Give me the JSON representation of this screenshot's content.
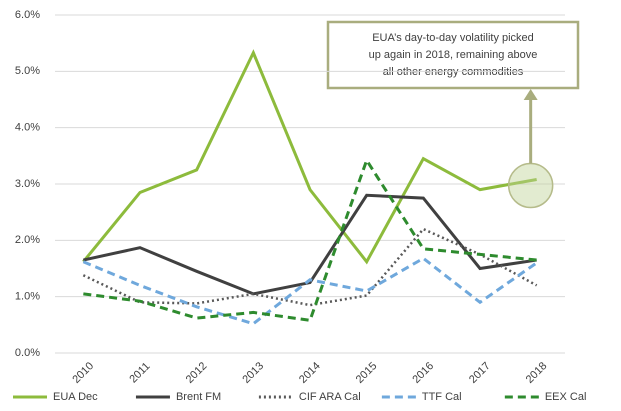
{
  "chart_data": {
    "type": "line",
    "categories": [
      "2010",
      "2011",
      "2012",
      "2013",
      "2014",
      "2015",
      "2016",
      "2017",
      "2018"
    ],
    "series": [
      {
        "name": "EUA Dec",
        "color": "#8dbb3c",
        "style": "solid",
        "values": [
          1.62,
          2.85,
          3.25,
          5.33,
          2.9,
          1.62,
          3.45,
          2.9,
          3.08
        ]
      },
      {
        "name": "Brent FM",
        "color": "#404040",
        "style": "solid",
        "values": [
          1.65,
          1.87,
          1.45,
          1.05,
          1.25,
          2.8,
          2.75,
          1.5,
          1.65
        ]
      },
      {
        "name": "CIF ARA Cal",
        "color": "#595959",
        "style": "dotted",
        "values": [
          1.38,
          0.9,
          0.88,
          1.05,
          0.85,
          1.02,
          2.2,
          1.75,
          1.2
        ]
      },
      {
        "name": "TTF Cal",
        "color": "#6fa8dc",
        "style": "dashed",
        "values": [
          1.62,
          1.2,
          0.82,
          0.52,
          1.3,
          1.1,
          1.68,
          0.9,
          1.6
        ]
      },
      {
        "name": "EEX Cal",
        "color": "#2e8b2e",
        "style": "dashed",
        "values": [
          1.05,
          0.92,
          0.62,
          0.72,
          0.58,
          3.42,
          1.85,
          1.75,
          1.65
        ]
      }
    ],
    "ylim": [
      0,
      6
    ],
    "yticks": [
      {
        "value": 0,
        "label": "0.0%"
      },
      {
        "value": 1,
        "label": "1.0%"
      },
      {
        "value": 2,
        "label": "2.0%"
      },
      {
        "value": 3,
        "label": "3.0%"
      },
      {
        "value": 4,
        "label": "4.0%"
      },
      {
        "value": 5,
        "label": "5.0%"
      },
      {
        "value": 6,
        "label": "6.0%"
      }
    ],
    "grid": true,
    "legend": "bottom",
    "annotation": [
      "EUA’s day-to-day volatility picked",
      "up again in 2018, remaining above",
      "all other energy commodities"
    ]
  }
}
